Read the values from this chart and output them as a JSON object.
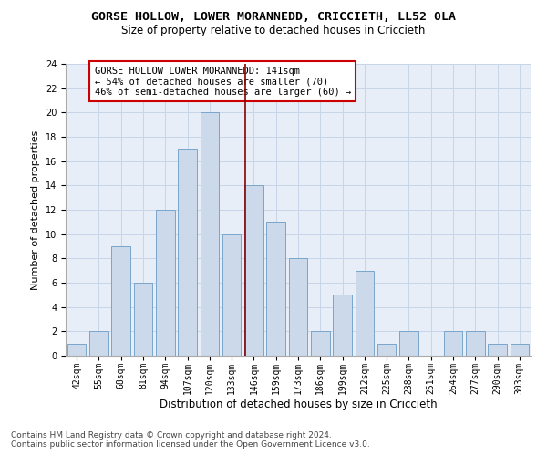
{
  "title": "GORSE HOLLOW, LOWER MORANNEDD, CRICCIETH, LL52 0LA",
  "subtitle": "Size of property relative to detached houses in Criccieth",
  "xlabel": "Distribution of detached houses by size in Criccieth",
  "ylabel": "Number of detached properties",
  "categories": [
    "42sqm",
    "55sqm",
    "68sqm",
    "81sqm",
    "94sqm",
    "107sqm",
    "120sqm",
    "133sqm",
    "146sqm",
    "159sqm",
    "173sqm",
    "186sqm",
    "199sqm",
    "212sqm",
    "225sqm",
    "238sqm",
    "251sqm",
    "264sqm",
    "277sqm",
    "290sqm",
    "303sqm"
  ],
  "values": [
    1,
    2,
    9,
    6,
    12,
    17,
    20,
    10,
    14,
    11,
    8,
    2,
    5,
    7,
    1,
    2,
    0,
    2,
    2,
    1,
    1
  ],
  "bar_color": "#ccd9ea",
  "bar_edgecolor": "#7aa6cc",
  "vline_color": "#8b0000",
  "annotation_text": "GORSE HOLLOW LOWER MORANNEDD: 141sqm\n← 54% of detached houses are smaller (70)\n46% of semi-detached houses are larger (60) →",
  "annotation_box_edgecolor": "#cc0000",
  "annotation_box_facecolor": "#ffffff",
  "ylim": [
    0,
    24
  ],
  "yticks": [
    0,
    2,
    4,
    6,
    8,
    10,
    12,
    14,
    16,
    18,
    20,
    22,
    24
  ],
  "grid_color": "#c8d4e8",
  "bg_color": "#e8eef8",
  "footer_line1": "Contains HM Land Registry data © Crown copyright and database right 2024.",
  "footer_line2": "Contains public sector information licensed under the Open Government Licence v3.0.",
  "title_fontsize": 9.5,
  "subtitle_fontsize": 8.5,
  "ylabel_fontsize": 8,
  "xlabel_fontsize": 8.5,
  "tick_fontsize": 7,
  "annotation_fontsize": 7.5,
  "footer_fontsize": 6.5
}
